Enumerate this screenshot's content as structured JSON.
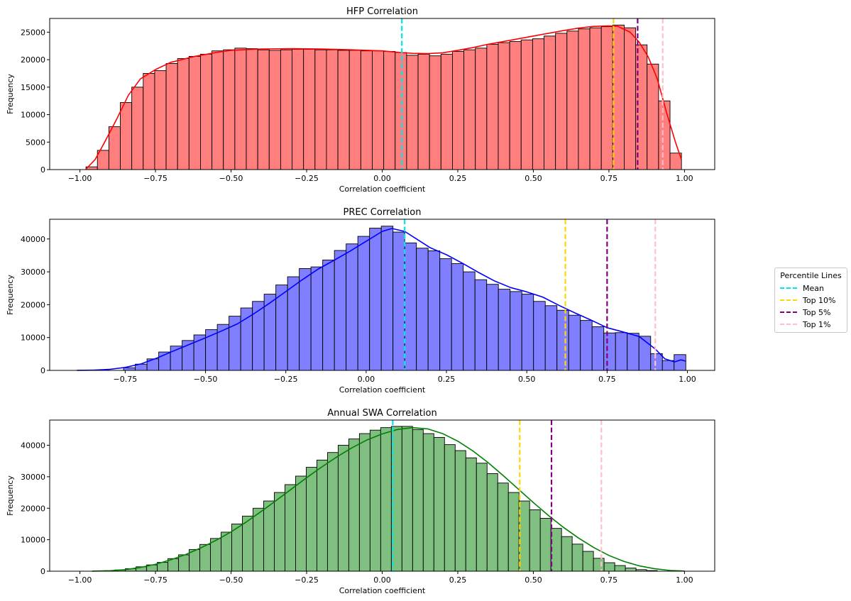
{
  "legend": {
    "title": "Percentile Lines",
    "items": [
      {
        "label": "Mean",
        "color": "#00e5ee"
      },
      {
        "label": "Top 10%",
        "color": "#ffd700"
      },
      {
        "label": "Top 5%",
        "color": "#800080"
      },
      {
        "label": "Top 1%",
        "color": "#ffc0cb"
      }
    ]
  },
  "chart_data": [
    {
      "type": "bar",
      "title": "HFP Correlation",
      "xlabel": "Correlation coefficient",
      "ylabel": "Frequency",
      "color": "#ff0000",
      "fill": "#ff7f7f",
      "xlim": [
        -1.1,
        1.1
      ],
      "ylim": [
        0,
        27500
      ],
      "xticks": [
        -1.0,
        -0.75,
        -0.5,
        -0.25,
        0.0,
        0.25,
        0.5,
        0.75,
        1.0
      ],
      "xtick_labels": [
        "−1.00",
        "−0.75",
        "−0.50",
        "−0.25",
        "0.00",
        "0.25",
        "0.50",
        "0.75",
        "1.00"
      ],
      "yticks": [
        0,
        5000,
        10000,
        15000,
        20000,
        25000
      ],
      "bin_start": -0.98,
      "bin_end": 0.99,
      "values": [
        500,
        3500,
        7800,
        12200,
        15000,
        17500,
        18000,
        19300,
        20200,
        20600,
        21000,
        21600,
        21800,
        22100,
        22000,
        21800,
        21700,
        21800,
        21900,
        21900,
        21800,
        21800,
        21700,
        21700,
        21600,
        21600,
        21500,
        21300,
        20800,
        21000,
        20700,
        21000,
        21500,
        21800,
        22100,
        22800,
        23100,
        23300,
        23600,
        23800,
        24300,
        24800,
        25200,
        25600,
        25800,
        26000,
        26300,
        25800,
        22700,
        19200,
        12500,
        3000
      ],
      "kde": [
        [
          -0.98,
          100
        ],
        [
          -0.95,
          1800
        ],
        [
          -0.92,
          4800
        ],
        [
          -0.88,
          9000
        ],
        [
          -0.84,
          13500
        ],
        [
          -0.8,
          16500
        ],
        [
          -0.75,
          18200
        ],
        [
          -0.7,
          19500
        ],
        [
          -0.62,
          20600
        ],
        [
          -0.55,
          21300
        ],
        [
          -0.5,
          21700
        ],
        [
          -0.4,
          21950
        ],
        [
          -0.3,
          22000
        ],
        [
          -0.2,
          21950
        ],
        [
          -0.1,
          21800
        ],
        [
          0.0,
          21600
        ],
        [
          0.05,
          21350
        ],
        [
          0.1,
          21150
        ],
        [
          0.15,
          21100
        ],
        [
          0.2,
          21250
        ],
        [
          0.25,
          21700
        ],
        [
          0.3,
          22200
        ],
        [
          0.35,
          22800
        ],
        [
          0.4,
          23300
        ],
        [
          0.45,
          23800
        ],
        [
          0.5,
          24300
        ],
        [
          0.55,
          24800
        ],
        [
          0.6,
          25300
        ],
        [
          0.65,
          25750
        ],
        [
          0.7,
          26050
        ],
        [
          0.75,
          26150
        ],
        [
          0.78,
          26050
        ],
        [
          0.82,
          25000
        ],
        [
          0.85,
          23200
        ],
        [
          0.88,
          20500
        ],
        [
          0.91,
          16500
        ],
        [
          0.94,
          10500
        ],
        [
          0.97,
          5000
        ],
        [
          0.99,
          1800
        ]
      ],
      "lines": {
        "mean": 0.065,
        "top10": 0.765,
        "top5": 0.845,
        "top1": 0.928
      }
    },
    {
      "type": "bar",
      "title": "PREC Correlation",
      "xlabel": "Correlation coefficient",
      "ylabel": "Frequency",
      "color": "#0000ff",
      "fill": "#7f7fff",
      "xlim": [
        -0.985,
        1.085
      ],
      "ylim": [
        0,
        46000
      ],
      "xticks": [
        -0.75,
        -0.5,
        -0.25,
        0.0,
        0.25,
        0.5,
        0.75,
        1.0
      ],
      "xtick_labels": [
        "−0.75",
        "−0.50",
        "−0.25",
        "0.00",
        "0.25",
        "0.50",
        "0.75",
        "1.00"
      ],
      "yticks": [
        0,
        10000,
        20000,
        30000,
        40000
      ],
      "bin_start": -0.755,
      "bin_end": 0.995,
      "values": [
        800,
        1900,
        3500,
        5600,
        7400,
        9100,
        10800,
        12400,
        14000,
        16500,
        19000,
        21000,
        23200,
        26000,
        28500,
        31000,
        31500,
        33600,
        36500,
        38500,
        40800,
        43300,
        43900,
        42100,
        38800,
        37200,
        36400,
        34000,
        32500,
        30000,
        27600,
        26200,
        24700,
        24000,
        23200,
        21000,
        19700,
        18300,
        16800,
        15200,
        13300,
        11400,
        11500,
        11300,
        10400,
        5100,
        3000,
        4800
      ],
      "kde": [
        [
          -0.9,
          20
        ],
        [
          -0.85,
          80
        ],
        [
          -0.8,
          300
        ],
        [
          -0.75,
          900
        ],
        [
          -0.7,
          2000
        ],
        [
          -0.65,
          3800
        ],
        [
          -0.6,
          5900
        ],
        [
          -0.55,
          7900
        ],
        [
          -0.5,
          9900
        ],
        [
          -0.45,
          12000
        ],
        [
          -0.4,
          14200
        ],
        [
          -0.35,
          17200
        ],
        [
          -0.3,
          20500
        ],
        [
          -0.25,
          24000
        ],
        [
          -0.2,
          27500
        ],
        [
          -0.15,
          30800
        ],
        [
          -0.1,
          33500
        ],
        [
          -0.05,
          36300
        ],
        [
          0.0,
          39300
        ],
        [
          0.05,
          42300
        ],
        [
          0.08,
          43200
        ],
        [
          0.12,
          42300
        ],
        [
          0.16,
          39800
        ],
        [
          0.2,
          37300
        ],
        [
          0.25,
          35200
        ],
        [
          0.3,
          32600
        ],
        [
          0.35,
          29800
        ],
        [
          0.4,
          27200
        ],
        [
          0.45,
          25200
        ],
        [
          0.5,
          23900
        ],
        [
          0.55,
          22300
        ],
        [
          0.6,
          19800
        ],
        [
          0.65,
          17500
        ],
        [
          0.7,
          15300
        ],
        [
          0.75,
          13000
        ],
        [
          0.8,
          11700
        ],
        [
          0.85,
          10300
        ],
        [
          0.9,
          6500
        ],
        [
          0.93,
          3500
        ],
        [
          0.96,
          2600
        ],
        [
          0.98,
          3200
        ],
        [
          0.995,
          2800
        ]
      ],
      "lines": {
        "mean": 0.12,
        "top10": 0.62,
        "top5": 0.75,
        "top1": 0.9
      }
    },
    {
      "type": "bar",
      "title": "Annual SWA Correlation",
      "xlabel": "Correlation coefficient",
      "ylabel": "Frequency",
      "color": "#008000",
      "fill": "#7fbf7f",
      "xlim": [
        -1.1,
        1.1
      ],
      "ylim": [
        0,
        48000
      ],
      "xticks": [
        -1.0,
        -0.75,
        -0.5,
        -0.25,
        0.0,
        0.25,
        0.5,
        0.75,
        1.0
      ],
      "xtick_labels": [
        "−1.00",
        "−0.75",
        "−0.50",
        "−0.25",
        "0.00",
        "0.25",
        "0.50",
        "0.75",
        "1.00"
      ],
      "yticks": [
        0,
        10000,
        20000,
        30000,
        40000
      ],
      "bin_start": -0.92,
      "bin_end": 0.91,
      "values": [
        150,
        400,
        800,
        1400,
        2000,
        2800,
        4000,
        5200,
        6900,
        8500,
        10400,
        12400,
        15000,
        17500,
        20000,
        22300,
        25000,
        27500,
        30200,
        33000,
        35300,
        37700,
        40000,
        42000,
        43700,
        44800,
        45600,
        46000,
        46000,
        45000,
        43700,
        42500,
        40200,
        38300,
        36000,
        34300,
        31000,
        28000,
        25000,
        22300,
        19500,
        16800,
        13600,
        11000,
        8600,
        6300,
        4100,
        2700,
        1800,
        1000,
        500,
        200
      ],
      "kde": [
        [
          -0.96,
          20
        ],
        [
          -0.9,
          150
        ],
        [
          -0.85,
          500
        ],
        [
          -0.8,
          1200
        ],
        [
          -0.75,
          2200
        ],
        [
          -0.7,
          3600
        ],
        [
          -0.65,
          5300
        ],
        [
          -0.6,
          7400
        ],
        [
          -0.55,
          9800
        ],
        [
          -0.5,
          12500
        ],
        [
          -0.45,
          15600
        ],
        [
          -0.4,
          19000
        ],
        [
          -0.35,
          22500
        ],
        [
          -0.3,
          26100
        ],
        [
          -0.25,
          29700
        ],
        [
          -0.2,
          33100
        ],
        [
          -0.15,
          36300
        ],
        [
          -0.1,
          39200
        ],
        [
          -0.05,
          41700
        ],
        [
          0.0,
          43600
        ],
        [
          0.05,
          45000
        ],
        [
          0.1,
          45600
        ],
        [
          0.15,
          45200
        ],
        [
          0.2,
          43700
        ],
        [
          0.25,
          41300
        ],
        [
          0.3,
          38200
        ],
        [
          0.35,
          34500
        ],
        [
          0.4,
          30400
        ],
        [
          0.45,
          26100
        ],
        [
          0.5,
          21800
        ],
        [
          0.55,
          17700
        ],
        [
          0.6,
          13900
        ],
        [
          0.65,
          10500
        ],
        [
          0.7,
          7500
        ],
        [
          0.75,
          5000
        ],
        [
          0.8,
          3100
        ],
        [
          0.85,
          1700
        ],
        [
          0.9,
          800
        ],
        [
          0.95,
          250
        ],
        [
          1.0,
          50
        ]
      ],
      "lines": {
        "mean": 0.035,
        "top10": 0.455,
        "top5": 0.56,
        "top1": 0.725
      }
    }
  ]
}
